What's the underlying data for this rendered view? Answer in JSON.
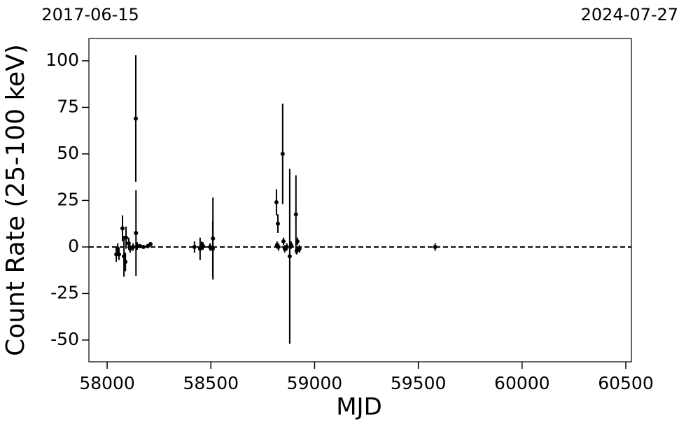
{
  "chart_data": {
    "type": "scatter",
    "xlabel": "MJD",
    "ylabel": "Count Rate (25-100 keV)",
    "x": [
      58044,
      58051,
      58057,
      58074,
      58081,
      58088,
      58091,
      58104,
      58111,
      58125,
      58138,
      58139,
      58145,
      58158,
      58175,
      58196,
      58209,
      58421,
      58448,
      58455,
      58462,
      58496,
      58509,
      58510,
      58816,
      58819,
      58823,
      58826,
      58846,
      58850,
      58856,
      58866,
      58880,
      58887,
      58910,
      58914,
      58917,
      58927,
      59581
    ],
    "values": [
      -4,
      -1,
      -4,
      10,
      -5,
      -8,
      5,
      2,
      -1,
      0,
      69,
      7.5,
      0.5,
      0.5,
      0,
      0.5,
      1.5,
      0,
      -1,
      1,
      0.5,
      0,
      -1,
      4.5,
      24,
      1,
      12.5,
      0,
      50,
      3,
      -1,
      0,
      -5,
      1,
      17.5,
      -2,
      3,
      -1,
      0
    ],
    "errors": [
      4,
      3,
      3,
      7,
      11,
      5,
      6,
      3,
      2,
      2,
      34,
      23,
      2,
      1,
      1,
      1,
      1,
      3,
      6,
      2,
      2,
      2,
      15,
      22,
      7,
      2,
      5,
      2,
      27,
      2,
      2,
      2,
      47,
      2,
      21,
      2,
      2,
      2,
      2
    ],
    "color": "#000000",
    "xlim": [
      57912,
      60527
    ],
    "ylim": [
      -61.7,
      112
    ],
    "xticks": [
      58000,
      58500,
      59000,
      59500,
      60000,
      60500
    ],
    "yticks": [
      -50,
      -25,
      0,
      25,
      50,
      75,
      100
    ],
    "top_ticks": [
      {
        "value": 57919,
        "label": "2017-06-15"
      },
      {
        "value": 60518,
        "label": "2024-07-27"
      }
    ],
    "hline": 0
  }
}
